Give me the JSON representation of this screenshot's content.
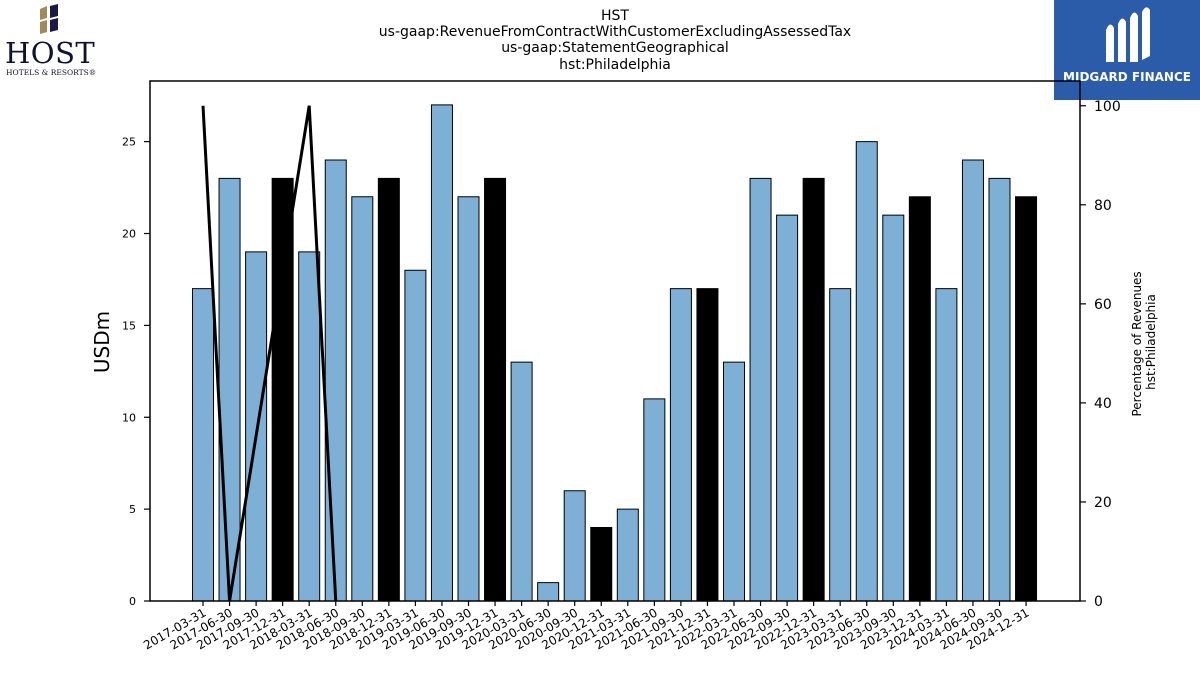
{
  "titles": [
    "HST",
    "us-gaap:RevenueFromContractWithCustomerExcludingAssessedTax",
    "us-gaap:StatementGeographical",
    "hst:Philadelphia"
  ],
  "logos": {
    "host_name": "HOST",
    "host_tagline": "HOTELS & RESORTS®",
    "midgard_name": "MIDGARD FINANCE"
  },
  "colors": {
    "bar_regular": "#7eb0d5",
    "bar_q4": "#000000",
    "line": "#000000",
    "midgard_bg": "#2a5caa"
  },
  "chart_data": {
    "type": "bar",
    "categories": [
      "2017-03-31",
      "2017-06-30",
      "2017-09-30",
      "2017-12-31",
      "2018-03-31",
      "2018-06-30",
      "2018-09-30",
      "2018-12-31",
      "2019-03-31",
      "2019-06-30",
      "2019-09-30",
      "2019-12-31",
      "2020-03-31",
      "2020-06-30",
      "2020-09-30",
      "2020-12-31",
      "2021-03-31",
      "2021-06-30",
      "2021-09-30",
      "2021-12-31",
      "2022-03-31",
      "2022-06-30",
      "2022-09-30",
      "2022-12-31",
      "2023-03-31",
      "2023-06-30",
      "2023-09-30",
      "2023-12-31",
      "2024-03-31",
      "2024-06-30",
      "2024-09-30",
      "2024-12-31"
    ],
    "values": [
      17,
      23,
      19,
      23,
      19,
      24,
      22,
      23,
      18,
      27,
      22,
      23,
      13,
      1,
      6,
      4,
      5,
      11,
      17,
      17,
      13,
      23,
      21,
      23,
      17,
      25,
      21,
      22,
      17,
      24,
      23,
      22
    ],
    "highlight_q4": true,
    "ylabel": "USDm",
    "ylim": [
      0,
      28.3
    ],
    "yticks": [
      0,
      5,
      10,
      15,
      20,
      25
    ],
    "secondary": {
      "ylabel_lines": [
        "Percentage of Revenues",
        "hst:Philadelphia"
      ],
      "ylim": [
        0,
        105
      ],
      "yticks": [
        0,
        20,
        40,
        60,
        80,
        100
      ],
      "line_x": [
        "2017-03-31",
        "2017-06-30",
        "2018-03-31",
        "2018-06-30"
      ],
      "line_y": [
        100,
        0,
        100,
        0
      ]
    }
  }
}
